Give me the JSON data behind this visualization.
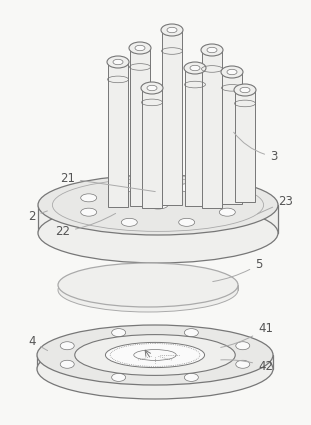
{
  "bg_color": "#f8f8f6",
  "line_color": "#aaaaaa",
  "dark_line": "#777777",
  "fill_color": "#e8e8e6",
  "fill_light": "#efefed",
  "fill_white": "#fafafa",
  "fig_bg": "#f8f8f6",
  "label_fontsize": 8.5,
  "label_color": "#555555"
}
